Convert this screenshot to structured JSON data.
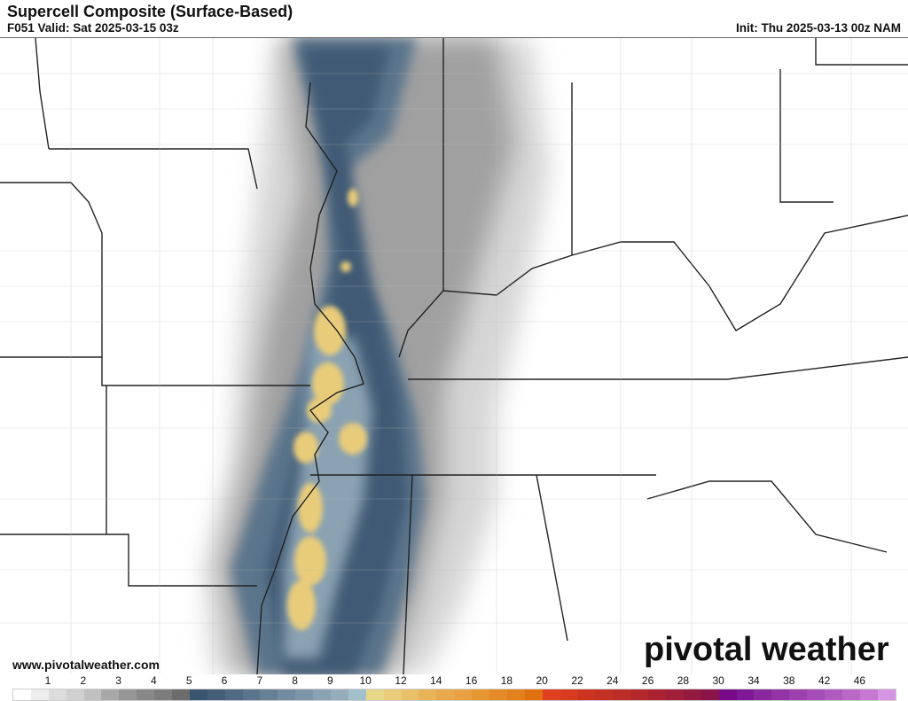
{
  "header": {
    "title": "Supercell Composite (Surface-Based)",
    "valid": "F051 Valid: Sat 2025-03-15 03z",
    "init": "Init: Thu 2025-03-13 00z NAM"
  },
  "footer": {
    "website": "www.pivotalweather.com",
    "logo": "pivotal weather"
  },
  "colorbar": {
    "labels": [
      "1",
      "2",
      "3",
      "4",
      "5",
      "6",
      "7",
      "8",
      "9",
      "10",
      "12",
      "14",
      "16",
      "18",
      "20",
      "22",
      "24",
      "26",
      "28",
      "30",
      "34",
      "38",
      "42",
      "46"
    ],
    "colors": [
      "#ffffff",
      "#eeeeee",
      "#dcdcdc",
      "#d0d0d0",
      "#c0c0c0",
      "#a8a8a8",
      "#969696",
      "#888888",
      "#7c7c7c",
      "#6c6c6c",
      "#3a5570",
      "#445e78",
      "#506a82",
      "#5a748c",
      "#668096",
      "#728ba0",
      "#7e96a8",
      "#8aa2b2",
      "#96acba",
      "#a2c0cc",
      "#e8d88a",
      "#e8cc7a",
      "#e8c06a",
      "#e8b458",
      "#e8a84c",
      "#e8a040",
      "#e69630",
      "#e48a26",
      "#e2801c",
      "#e07010",
      "#e04020",
      "#d83a20",
      "#cc3420",
      "#c43024",
      "#bc2c28",
      "#b4282c",
      "#aa2230",
      "#a01e38",
      "#941a40",
      "#8a1448",
      "#780a8a",
      "#7e1896",
      "#88289e",
      "#9234a6",
      "#9c40ae",
      "#a64cb6",
      "#b05ac0",
      "#ba68c8",
      "#c678d2",
      "#d496e2"
    ]
  }
}
